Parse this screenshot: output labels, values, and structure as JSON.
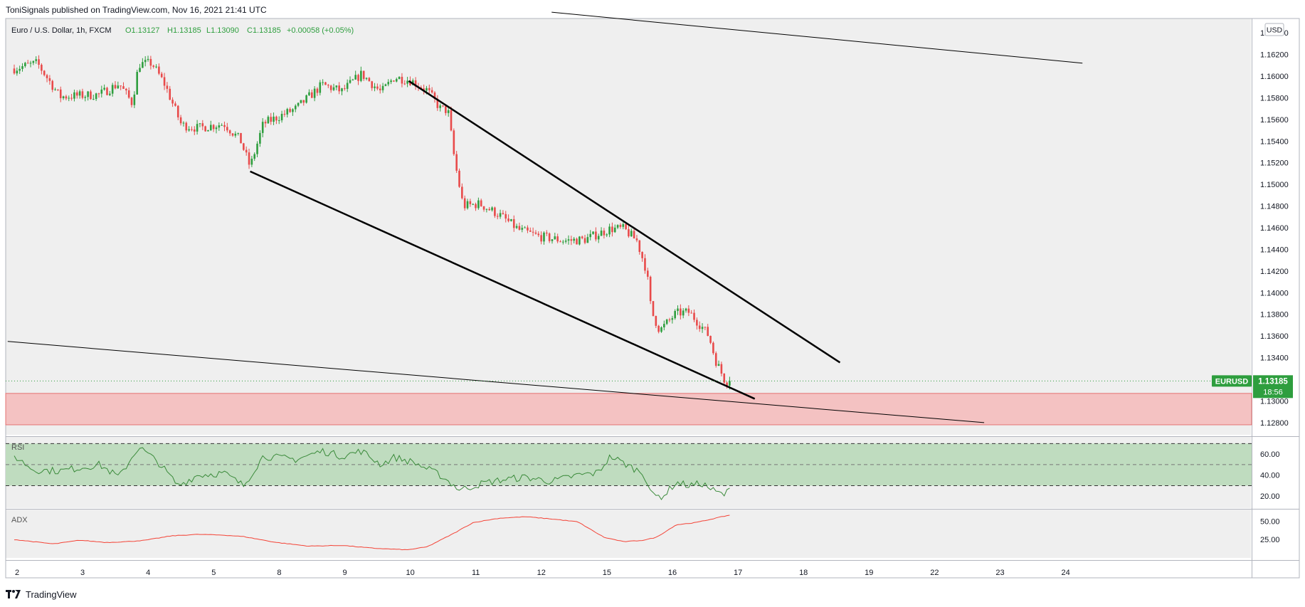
{
  "header": {
    "published": "ToniSignals published on TradingView.com, Nov 16, 2021 21:41 UTC"
  },
  "footer": {
    "brand": "TradingView",
    "logo_icon": "tradingview-logo-icon"
  },
  "chart_data": {
    "type": "candlestick",
    "symbol_title": "Euro / U.S. Dollar, 1h, FXCM",
    "ohlc_label": {
      "o": "O1.13127",
      "h": "H1.13185",
      "l": "L1.13090",
      "c": "C1.13185",
      "chg": "+0.00058 (+0.05%)"
    },
    "currency_badge": "USD",
    "price_axis": {
      "ticks": [
        "1.16400",
        "1.16200",
        "1.16000",
        "1.15800",
        "1.15600",
        "1.15400",
        "1.15200",
        "1.15000",
        "1.14800",
        "1.14600",
        "1.14400",
        "1.14200",
        "1.14000",
        "1.13800",
        "1.13600",
        "1.13400",
        "1.13200",
        "1.13000",
        "1.12800"
      ],
      "ylim": [
        1.1276,
        1.1644
      ]
    },
    "time_axis": {
      "ticks": [
        "2",
        "3",
        "4",
        "5",
        "8",
        "9",
        "10",
        "11",
        "12",
        "15",
        "16",
        "17",
        "18",
        "19",
        "22",
        "23",
        "24"
      ]
    },
    "last_price": {
      "symbol": "EURUSD",
      "price": "1.13185",
      "countdown": "18:56",
      "value": 1.13185
    },
    "support_zone": {
      "from": 1.1278,
      "to": 1.1307,
      "color": "#f4c2c2"
    },
    "price_waypoints": [
      {
        "d": 0,
        "p": 1.1607
      },
      {
        "d": 0.35,
        "p": 1.1612
      },
      {
        "d": 0.7,
        "p": 1.1581
      },
      {
        "d": 1.3,
        "p": 1.1583
      },
      {
        "d": 1.6,
        "p": 1.1593
      },
      {
        "d": 1.8,
        "p": 1.1575
      },
      {
        "d": 1.9,
        "p": 1.1611
      },
      {
        "d": 2.1,
        "p": 1.1612
      },
      {
        "d": 2.3,
        "p": 1.1592
      },
      {
        "d": 2.55,
        "p": 1.1555
      },
      {
        "d": 2.8,
        "p": 1.1552
      },
      {
        "d": 3.2,
        "p": 1.1556
      },
      {
        "d": 3.45,
        "p": 1.1541
      },
      {
        "d": 3.6,
        "p": 1.1516
      },
      {
        "d": 3.8,
        "p": 1.1556
      },
      {
        "d": 4.3,
        "p": 1.157
      },
      {
        "d": 4.7,
        "p": 1.1592
      },
      {
        "d": 5.0,
        "p": 1.1586
      },
      {
        "d": 5.3,
        "p": 1.1602
      },
      {
        "d": 5.6,
        "p": 1.1585
      },
      {
        "d": 5.8,
        "p": 1.1599
      },
      {
        "d": 6.05,
        "p": 1.1596
      },
      {
        "d": 6.3,
        "p": 1.1587
      },
      {
        "d": 6.5,
        "p": 1.157
      },
      {
        "d": 6.62,
        "p": 1.1568
      },
      {
        "d": 6.72,
        "p": 1.1522
      },
      {
        "d": 6.85,
        "p": 1.148
      },
      {
        "d": 7.1,
        "p": 1.1482
      },
      {
        "d": 7.4,
        "p": 1.1472
      },
      {
        "d": 7.7,
        "p": 1.1458
      },
      {
        "d": 8.0,
        "p": 1.1452
      },
      {
        "d": 8.4,
        "p": 1.1448
      },
      {
        "d": 8.7,
        "p": 1.1449
      },
      {
        "d": 9.1,
        "p": 1.1459
      },
      {
        "d": 9.3,
        "p": 1.1459
      },
      {
        "d": 9.5,
        "p": 1.1448
      },
      {
        "d": 9.65,
        "p": 1.142
      },
      {
        "d": 9.72,
        "p": 1.1383
      },
      {
        "d": 9.85,
        "p": 1.1365
      },
      {
        "d": 10.1,
        "p": 1.1381
      },
      {
        "d": 10.3,
        "p": 1.1382
      },
      {
        "d": 10.5,
        "p": 1.1368
      },
      {
        "d": 10.6,
        "p": 1.136
      },
      {
        "d": 10.7,
        "p": 1.1338
      },
      {
        "d": 10.85,
        "p": 1.1318
      },
      {
        "d": 10.9,
        "p": 1.13185
      }
    ],
    "trendlines": [
      {
        "name": "wedge-upper",
        "from": [
          6.02,
          1.15955
        ],
        "to": [
          12.6,
          1.13355
        ],
        "width": 2.5
      },
      {
        "name": "wedge-lower",
        "from": [
          3.6,
          1.1512
        ],
        "to": [
          11.3,
          1.1302
        ],
        "width": 2.5
      },
      {
        "name": "long-upper",
        "from": [
          8.2,
          1.1659
        ],
        "to": [
          16.3,
          1.1612
        ],
        "width": 1
      },
      {
        "name": "long-lower",
        "from": [
          -0.1,
          1.1355
        ],
        "to": [
          14.8,
          1.128
        ],
        "width": 1
      }
    ],
    "rsi": {
      "label": "RSI",
      "ticks": [
        "60.00",
        "40.00",
        "20.00"
      ],
      "ylim": [
        10,
        75
      ],
      "band": [
        30,
        70
      ],
      "midline": 50,
      "waypoints": [
        {
          "d": 0,
          "p": 58
        },
        {
          "d": 0.3,
          "p": 45
        },
        {
          "d": 0.7,
          "p": 44
        },
        {
          "d": 1.3,
          "p": 50
        },
        {
          "d": 1.6,
          "p": 38
        },
        {
          "d": 1.9,
          "p": 67
        },
        {
          "d": 2.2,
          "p": 52
        },
        {
          "d": 2.5,
          "p": 30
        },
        {
          "d": 2.8,
          "p": 40
        },
        {
          "d": 3.2,
          "p": 42
        },
        {
          "d": 3.5,
          "p": 30
        },
        {
          "d": 3.8,
          "p": 58
        },
        {
          "d": 4.3,
          "p": 55
        },
        {
          "d": 4.7,
          "p": 63
        },
        {
          "d": 5.0,
          "p": 58
        },
        {
          "d": 5.3,
          "p": 63
        },
        {
          "d": 5.6,
          "p": 50
        },
        {
          "d": 5.8,
          "p": 57
        },
        {
          "d": 6.1,
          "p": 52
        },
        {
          "d": 6.5,
          "p": 40
        },
        {
          "d": 6.8,
          "p": 26
        },
        {
          "d": 7.2,
          "p": 33
        },
        {
          "d": 7.5,
          "p": 36
        },
        {
          "d": 7.8,
          "p": 38
        },
        {
          "d": 8.2,
          "p": 34
        },
        {
          "d": 8.6,
          "p": 40
        },
        {
          "d": 8.9,
          "p": 42
        },
        {
          "d": 9.1,
          "p": 58
        },
        {
          "d": 9.4,
          "p": 48
        },
        {
          "d": 9.6,
          "p": 42
        },
        {
          "d": 9.75,
          "p": 20
        },
        {
          "d": 9.9,
          "p": 20
        },
        {
          "d": 10.1,
          "p": 33
        },
        {
          "d": 10.3,
          "p": 30
        },
        {
          "d": 10.5,
          "p": 32
        },
        {
          "d": 10.7,
          "p": 24
        },
        {
          "d": 10.85,
          "p": 21
        },
        {
          "d": 10.9,
          "p": 26
        }
      ]
    },
    "adx": {
      "label": "ADX",
      "ticks": [
        "50.00",
        "25.00"
      ],
      "ylim": [
        0,
        60
      ],
      "waypoints": [
        {
          "d": 0,
          "p": 25
        },
        {
          "d": 0.3,
          "p": 22
        },
        {
          "d": 0.6,
          "p": 19
        },
        {
          "d": 1.0,
          "p": 24
        },
        {
          "d": 1.4,
          "p": 21
        },
        {
          "d": 1.7,
          "p": 22
        },
        {
          "d": 2.0,
          "p": 24
        },
        {
          "d": 2.4,
          "p": 30
        },
        {
          "d": 2.8,
          "p": 32
        },
        {
          "d": 3.2,
          "p": 31
        },
        {
          "d": 3.5,
          "p": 29
        },
        {
          "d": 4.0,
          "p": 21
        },
        {
          "d": 4.5,
          "p": 16
        },
        {
          "d": 5.0,
          "p": 17
        },
        {
          "d": 5.5,
          "p": 13
        },
        {
          "d": 6.0,
          "p": 11
        },
        {
          "d": 6.3,
          "p": 15
        },
        {
          "d": 6.7,
          "p": 33
        },
        {
          "d": 7.0,
          "p": 48
        },
        {
          "d": 7.4,
          "p": 54
        },
        {
          "d": 7.8,
          "p": 56
        },
        {
          "d": 8.2,
          "p": 53
        },
        {
          "d": 8.6,
          "p": 49
        },
        {
          "d": 9.0,
          "p": 28
        },
        {
          "d": 9.3,
          "p": 22
        },
        {
          "d": 9.6,
          "p": 24
        },
        {
          "d": 9.8,
          "p": 28
        },
        {
          "d": 10.1,
          "p": 45
        },
        {
          "d": 10.4,
          "p": 48
        },
        {
          "d": 10.6,
          "p": 52
        },
        {
          "d": 10.9,
          "p": 58
        }
      ]
    },
    "colors": {
      "up": "#26a69a",
      "down": "#ef5350",
      "up_candle": "#2e9e3e",
      "down_candle": "#e84a4a",
      "pane_bg": "#efefef",
      "rsi_band": "#bfdcbf",
      "rsi_line": "#3a8a3a",
      "adx_line": "#f44336",
      "price_badge": "#2e9e3e"
    }
  }
}
